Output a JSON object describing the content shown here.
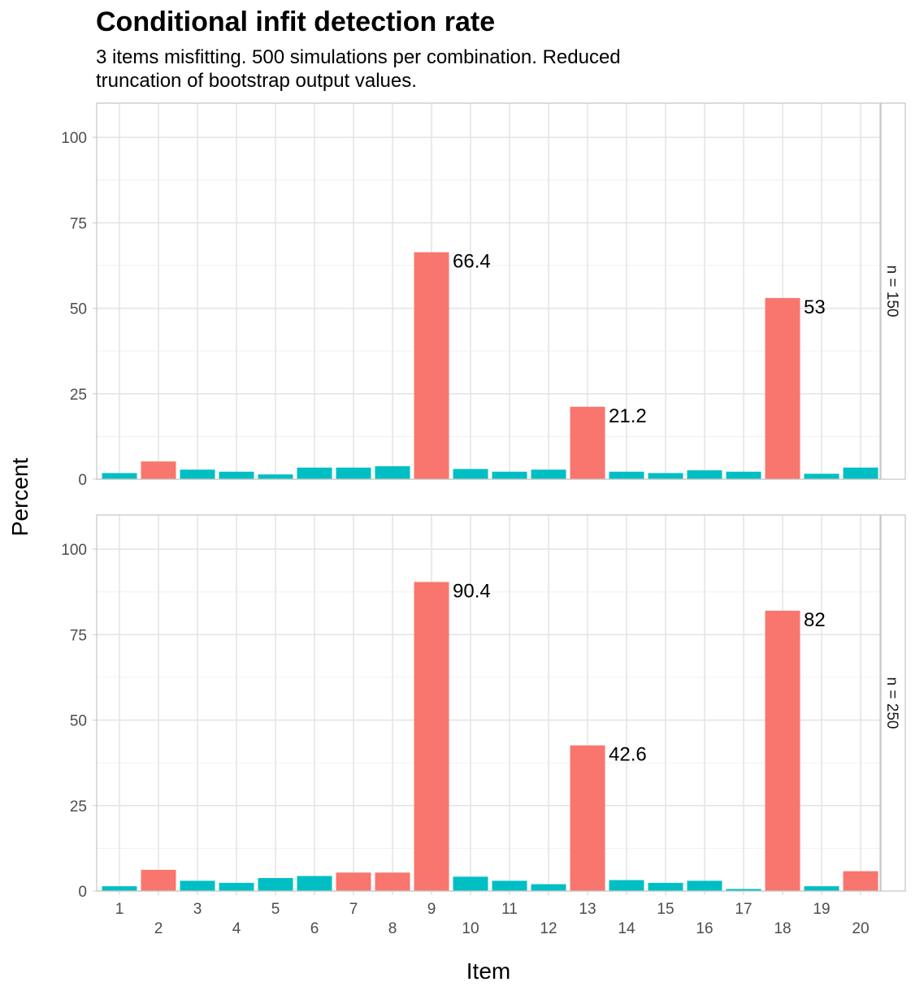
{
  "chart_data": {
    "type": "bar",
    "title": "Conditional infit detection rate",
    "subtitle_lines": [
      "3 items misfitting. 500 simulations per combination. Reduced",
      "truncation of bootstrap output values."
    ],
    "xlabel": "Item",
    "ylabel": "Percent",
    "ylim": [
      0,
      110
    ],
    "y_ticks": [
      0,
      25,
      50,
      75,
      100
    ],
    "categories": [
      "1",
      "2",
      "3",
      "4",
      "5",
      "6",
      "7",
      "8",
      "9",
      "10",
      "11",
      "12",
      "13",
      "14",
      "15",
      "16",
      "17",
      "18",
      "19",
      "20"
    ],
    "colors": {
      "misfit": "#F8766D",
      "fit": "#00BFC4"
    },
    "grid": true,
    "facets": [
      {
        "label": "n = 150",
        "values": [
          1.8,
          5.2,
          2.8,
          2.2,
          1.4,
          3.4,
          3.4,
          3.8,
          66.4,
          3.0,
          2.2,
          2.8,
          21.2,
          2.2,
          1.8,
          2.6,
          2.2,
          53,
          1.6,
          3.4
        ],
        "misfit": [
          false,
          true,
          false,
          false,
          false,
          false,
          false,
          false,
          true,
          false,
          false,
          false,
          true,
          false,
          false,
          false,
          false,
          true,
          false,
          false
        ],
        "labels": [
          {
            "index": 8,
            "text": "66.4"
          },
          {
            "index": 12,
            "text": "21.2"
          },
          {
            "index": 17,
            "text": "53"
          }
        ]
      },
      {
        "label": "n = 250",
        "values": [
          1.4,
          6.2,
          3.0,
          2.4,
          3.8,
          4.4,
          5.4,
          5.4,
          90.4,
          4.2,
          3.0,
          2.0,
          42.6,
          3.2,
          2.4,
          3.0,
          0.6,
          82,
          1.4,
          5.8
        ],
        "misfit": [
          false,
          true,
          false,
          false,
          false,
          false,
          true,
          true,
          true,
          false,
          false,
          false,
          true,
          false,
          false,
          false,
          false,
          true,
          false,
          true
        ],
        "labels": [
          {
            "index": 8,
            "text": "90.4"
          },
          {
            "index": 12,
            "text": "42.6"
          },
          {
            "index": 17,
            "text": "82"
          }
        ]
      }
    ]
  }
}
